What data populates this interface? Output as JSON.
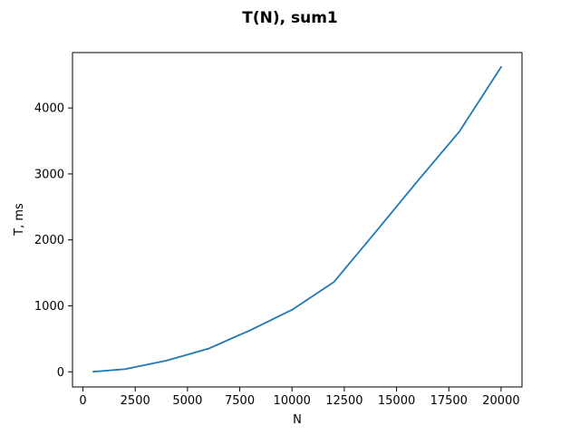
{
  "chart_data": {
    "type": "line",
    "title": "T(N), sum1",
    "xlabel": "N",
    "ylabel": "T, ms",
    "xlim": [
      -500,
      21000
    ],
    "ylim": [
      -230,
      4840
    ],
    "xticks": [
      0,
      2500,
      5000,
      7500,
      10000,
      12500,
      15000,
      17500,
      20000
    ],
    "yticks": [
      0,
      1000,
      2000,
      3000,
      4000
    ],
    "grid": false,
    "series": [
      {
        "color": "#1f77b4",
        "x": [
          500,
          2000,
          4000,
          6000,
          8000,
          10000,
          12000,
          14000,
          16000,
          18000,
          20000
        ],
        "y": [
          2,
          40,
          170,
          350,
          630,
          940,
          1360,
          2120,
          2890,
          3640,
          4620
        ]
      }
    ]
  }
}
